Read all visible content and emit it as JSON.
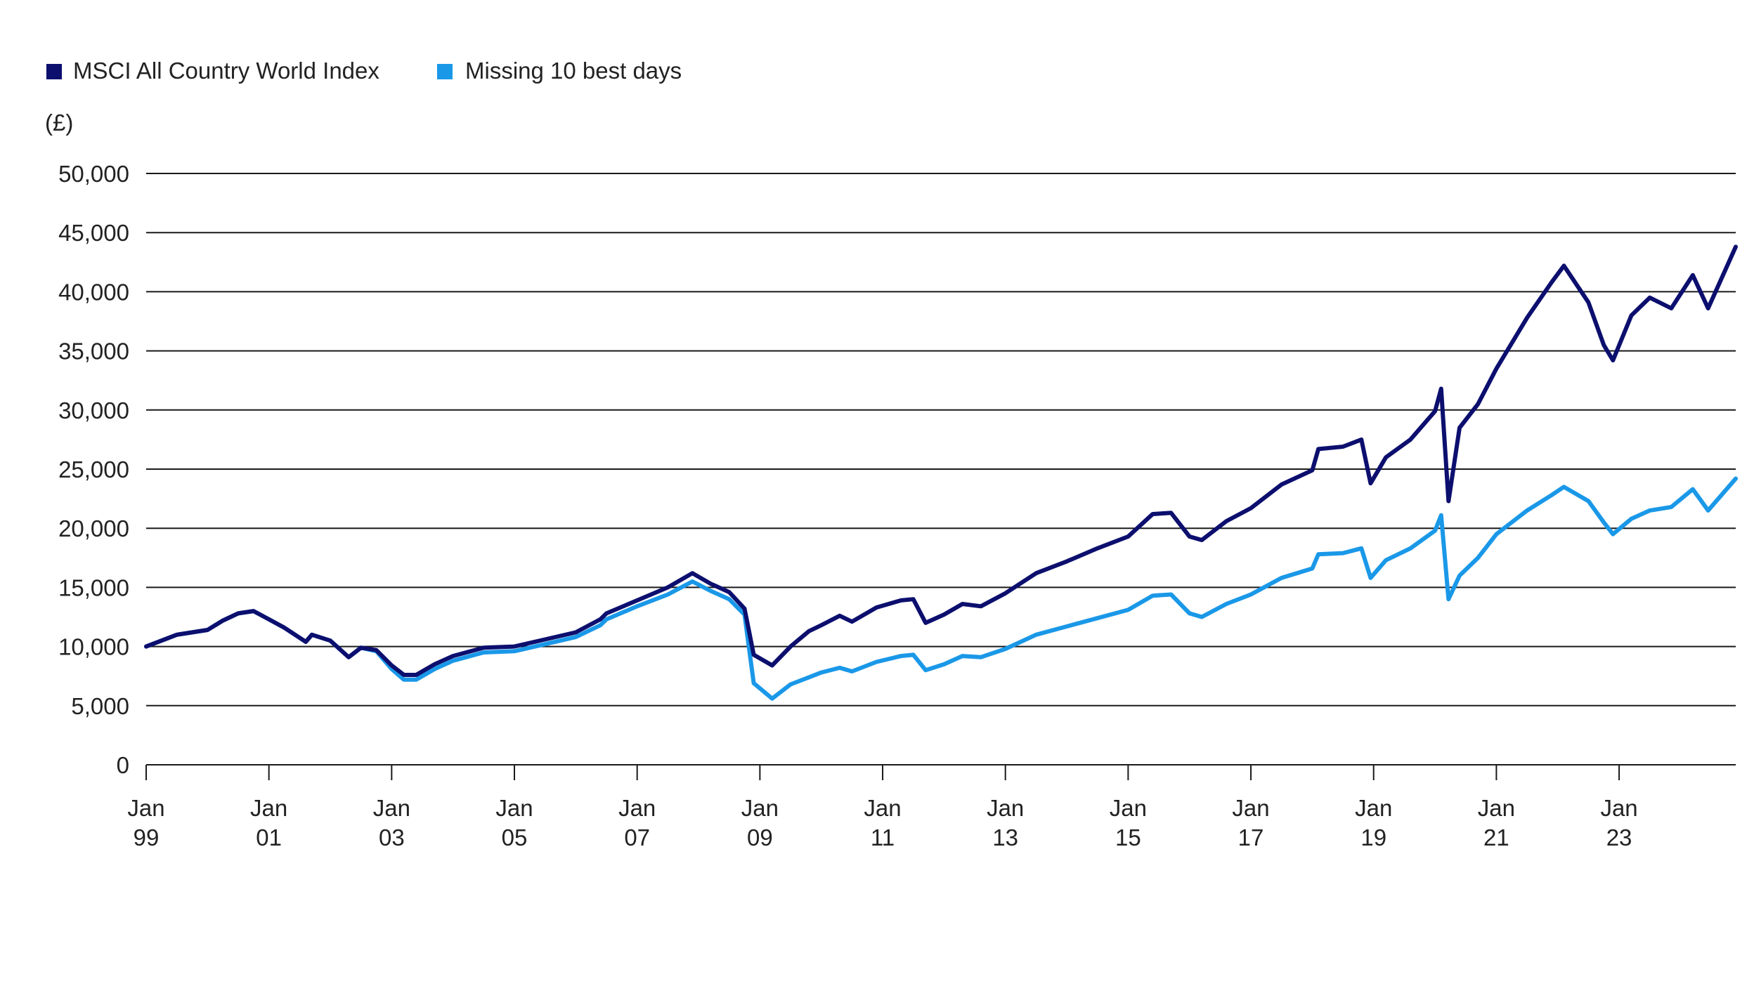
{
  "chart_data": {
    "type": "line",
    "ylabel": "(£)",
    "ylim": [
      0,
      50000
    ],
    "yticks": [
      0,
      5000,
      10000,
      15000,
      20000,
      25000,
      30000,
      35000,
      40000,
      45000,
      50000
    ],
    "ytick_labels": [
      "0",
      "5,000",
      "10,000",
      "15,000",
      "20,000",
      "25,000",
      "30,000",
      "35,000",
      "40,000",
      "45,000",
      "50,000"
    ],
    "xlim": [
      1999.0,
      2024.9
    ],
    "xticks": [
      1999,
      2001,
      2003,
      2005,
      2007,
      2009,
      2011,
      2013,
      2015,
      2017,
      2019,
      2021,
      2023
    ],
    "xtick_labels": [
      [
        "Jan",
        "99"
      ],
      [
        "Jan",
        "01"
      ],
      [
        "Jan",
        "03"
      ],
      [
        "Jan",
        "05"
      ],
      [
        "Jan",
        "07"
      ],
      [
        "Jan",
        "09"
      ],
      [
        "Jan",
        "11"
      ],
      [
        "Jan",
        "13"
      ],
      [
        "Jan",
        "15"
      ],
      [
        "Jan",
        "17"
      ],
      [
        "Jan",
        "19"
      ],
      [
        "Jan",
        "21"
      ],
      [
        "Jan",
        "23"
      ]
    ],
    "grid": true,
    "legend_position": "top-left",
    "series": [
      {
        "name": "MSCI All Country World Index",
        "color": "#0c0f6e",
        "points": [
          [
            1999.0,
            10000
          ],
          [
            1999.5,
            11000
          ],
          [
            2000.0,
            11400
          ],
          [
            2000.25,
            12200
          ],
          [
            2000.5,
            12800
          ],
          [
            2000.75,
            13000
          ],
          [
            2001.0,
            12300
          ],
          [
            2001.25,
            11600
          ],
          [
            2001.6,
            10400
          ],
          [
            2001.7,
            11000
          ],
          [
            2002.0,
            10500
          ],
          [
            2002.3,
            9100
          ],
          [
            2002.5,
            9900
          ],
          [
            2002.75,
            9700
          ],
          [
            2003.0,
            8400
          ],
          [
            2003.2,
            7600
          ],
          [
            2003.4,
            7600
          ],
          [
            2003.7,
            8500
          ],
          [
            2004.0,
            9200
          ],
          [
            2004.5,
            9900
          ],
          [
            2005.0,
            10000
          ],
          [
            2005.5,
            10600
          ],
          [
            2006.0,
            11200
          ],
          [
            2006.4,
            12300
          ],
          [
            2006.5,
            12800
          ],
          [
            2007.0,
            13900
          ],
          [
            2007.5,
            15000
          ],
          [
            2007.9,
            16200
          ],
          [
            2008.2,
            15300
          ],
          [
            2008.5,
            14600
          ],
          [
            2008.75,
            13200
          ],
          [
            2008.9,
            9300
          ],
          [
            2009.2,
            8400
          ],
          [
            2009.5,
            10000
          ],
          [
            2009.8,
            11300
          ],
          [
            2010.0,
            11800
          ],
          [
            2010.3,
            12600
          ],
          [
            2010.5,
            12100
          ],
          [
            2010.9,
            13300
          ],
          [
            2011.3,
            13900
          ],
          [
            2011.5,
            14000
          ],
          [
            2011.7,
            12000
          ],
          [
            2012.0,
            12700
          ],
          [
            2012.3,
            13600
          ],
          [
            2012.6,
            13400
          ],
          [
            2013.0,
            14500
          ],
          [
            2013.5,
            16200
          ],
          [
            2014.0,
            17200
          ],
          [
            2014.5,
            18300
          ],
          [
            2015.0,
            19300
          ],
          [
            2015.4,
            21200
          ],
          [
            2015.7,
            21300
          ],
          [
            2016.0,
            19300
          ],
          [
            2016.2,
            19000
          ],
          [
            2016.6,
            20600
          ],
          [
            2017.0,
            21700
          ],
          [
            2017.5,
            23700
          ],
          [
            2018.0,
            24900
          ],
          [
            2018.1,
            26700
          ],
          [
            2018.5,
            26900
          ],
          [
            2018.8,
            27500
          ],
          [
            2018.95,
            23800
          ],
          [
            2019.2,
            26000
          ],
          [
            2019.6,
            27500
          ],
          [
            2020.0,
            29900
          ],
          [
            2020.1,
            31800
          ],
          [
            2020.22,
            22300
          ],
          [
            2020.4,
            28500
          ],
          [
            2020.7,
            30500
          ],
          [
            2021.0,
            33500
          ],
          [
            2021.5,
            37800
          ],
          [
            2021.9,
            40800
          ],
          [
            2022.1,
            42200
          ],
          [
            2022.5,
            39100
          ],
          [
            2022.75,
            35500
          ],
          [
            2022.9,
            34200
          ],
          [
            2023.2,
            38000
          ],
          [
            2023.5,
            39500
          ],
          [
            2023.85,
            38600
          ],
          [
            2024.2,
            41400
          ],
          [
            2024.45,
            38600
          ],
          [
            2024.9,
            43800
          ]
        ]
      },
      {
        "name": "Missing 10 best days",
        "color": "#1a98e8",
        "points": [
          [
            1999.0,
            10000
          ],
          [
            1999.5,
            11000
          ],
          [
            2000.0,
            11400
          ],
          [
            2000.25,
            12200
          ],
          [
            2000.5,
            12800
          ],
          [
            2000.75,
            13000
          ],
          [
            2001.0,
            12300
          ],
          [
            2001.25,
            11600
          ],
          [
            2001.6,
            10400
          ],
          [
            2001.7,
            11000
          ],
          [
            2002.0,
            10500
          ],
          [
            2002.3,
            9100
          ],
          [
            2002.5,
            9900
          ],
          [
            2002.75,
            9600
          ],
          [
            2003.0,
            8100
          ],
          [
            2003.2,
            7200
          ],
          [
            2003.4,
            7200
          ],
          [
            2003.7,
            8100
          ],
          [
            2004.0,
            8800
          ],
          [
            2004.5,
            9500
          ],
          [
            2005.0,
            9600
          ],
          [
            2005.5,
            10200
          ],
          [
            2006.0,
            10800
          ],
          [
            2006.4,
            11800
          ],
          [
            2006.5,
            12300
          ],
          [
            2007.0,
            13400
          ],
          [
            2007.5,
            14400
          ],
          [
            2007.9,
            15500
          ],
          [
            2008.2,
            14700
          ],
          [
            2008.5,
            14000
          ],
          [
            2008.75,
            12700
          ],
          [
            2008.9,
            6900
          ],
          [
            2009.2,
            5600
          ],
          [
            2009.5,
            6800
          ],
          [
            2009.8,
            7400
          ],
          [
            2010.0,
            7800
          ],
          [
            2010.3,
            8200
          ],
          [
            2010.5,
            7900
          ],
          [
            2010.9,
            8700
          ],
          [
            2011.3,
            9200
          ],
          [
            2011.5,
            9300
          ],
          [
            2011.7,
            8000
          ],
          [
            2012.0,
            8500
          ],
          [
            2012.3,
            9200
          ],
          [
            2012.6,
            9100
          ],
          [
            2013.0,
            9800
          ],
          [
            2013.5,
            11000
          ],
          [
            2014.0,
            11700
          ],
          [
            2014.5,
            12400
          ],
          [
            2015.0,
            13100
          ],
          [
            2015.4,
            14300
          ],
          [
            2015.7,
            14400
          ],
          [
            2016.0,
            12800
          ],
          [
            2016.2,
            12500
          ],
          [
            2016.6,
            13600
          ],
          [
            2017.0,
            14400
          ],
          [
            2017.5,
            15800
          ],
          [
            2018.0,
            16600
          ],
          [
            2018.1,
            17800
          ],
          [
            2018.5,
            17900
          ],
          [
            2018.8,
            18300
          ],
          [
            2018.95,
            15800
          ],
          [
            2019.2,
            17300
          ],
          [
            2019.6,
            18300
          ],
          [
            2020.0,
            19800
          ],
          [
            2020.1,
            21100
          ],
          [
            2020.22,
            14000
          ],
          [
            2020.4,
            16000
          ],
          [
            2020.7,
            17500
          ],
          [
            2021.0,
            19500
          ],
          [
            2021.5,
            21500
          ],
          [
            2021.9,
            22800
          ],
          [
            2022.1,
            23500
          ],
          [
            2022.5,
            22300
          ],
          [
            2022.75,
            20500
          ],
          [
            2022.9,
            19500
          ],
          [
            2023.2,
            20800
          ],
          [
            2023.5,
            21500
          ],
          [
            2023.85,
            21800
          ],
          [
            2024.2,
            23300
          ],
          [
            2024.45,
            21500
          ],
          [
            2024.9,
            24200
          ]
        ]
      }
    ]
  }
}
